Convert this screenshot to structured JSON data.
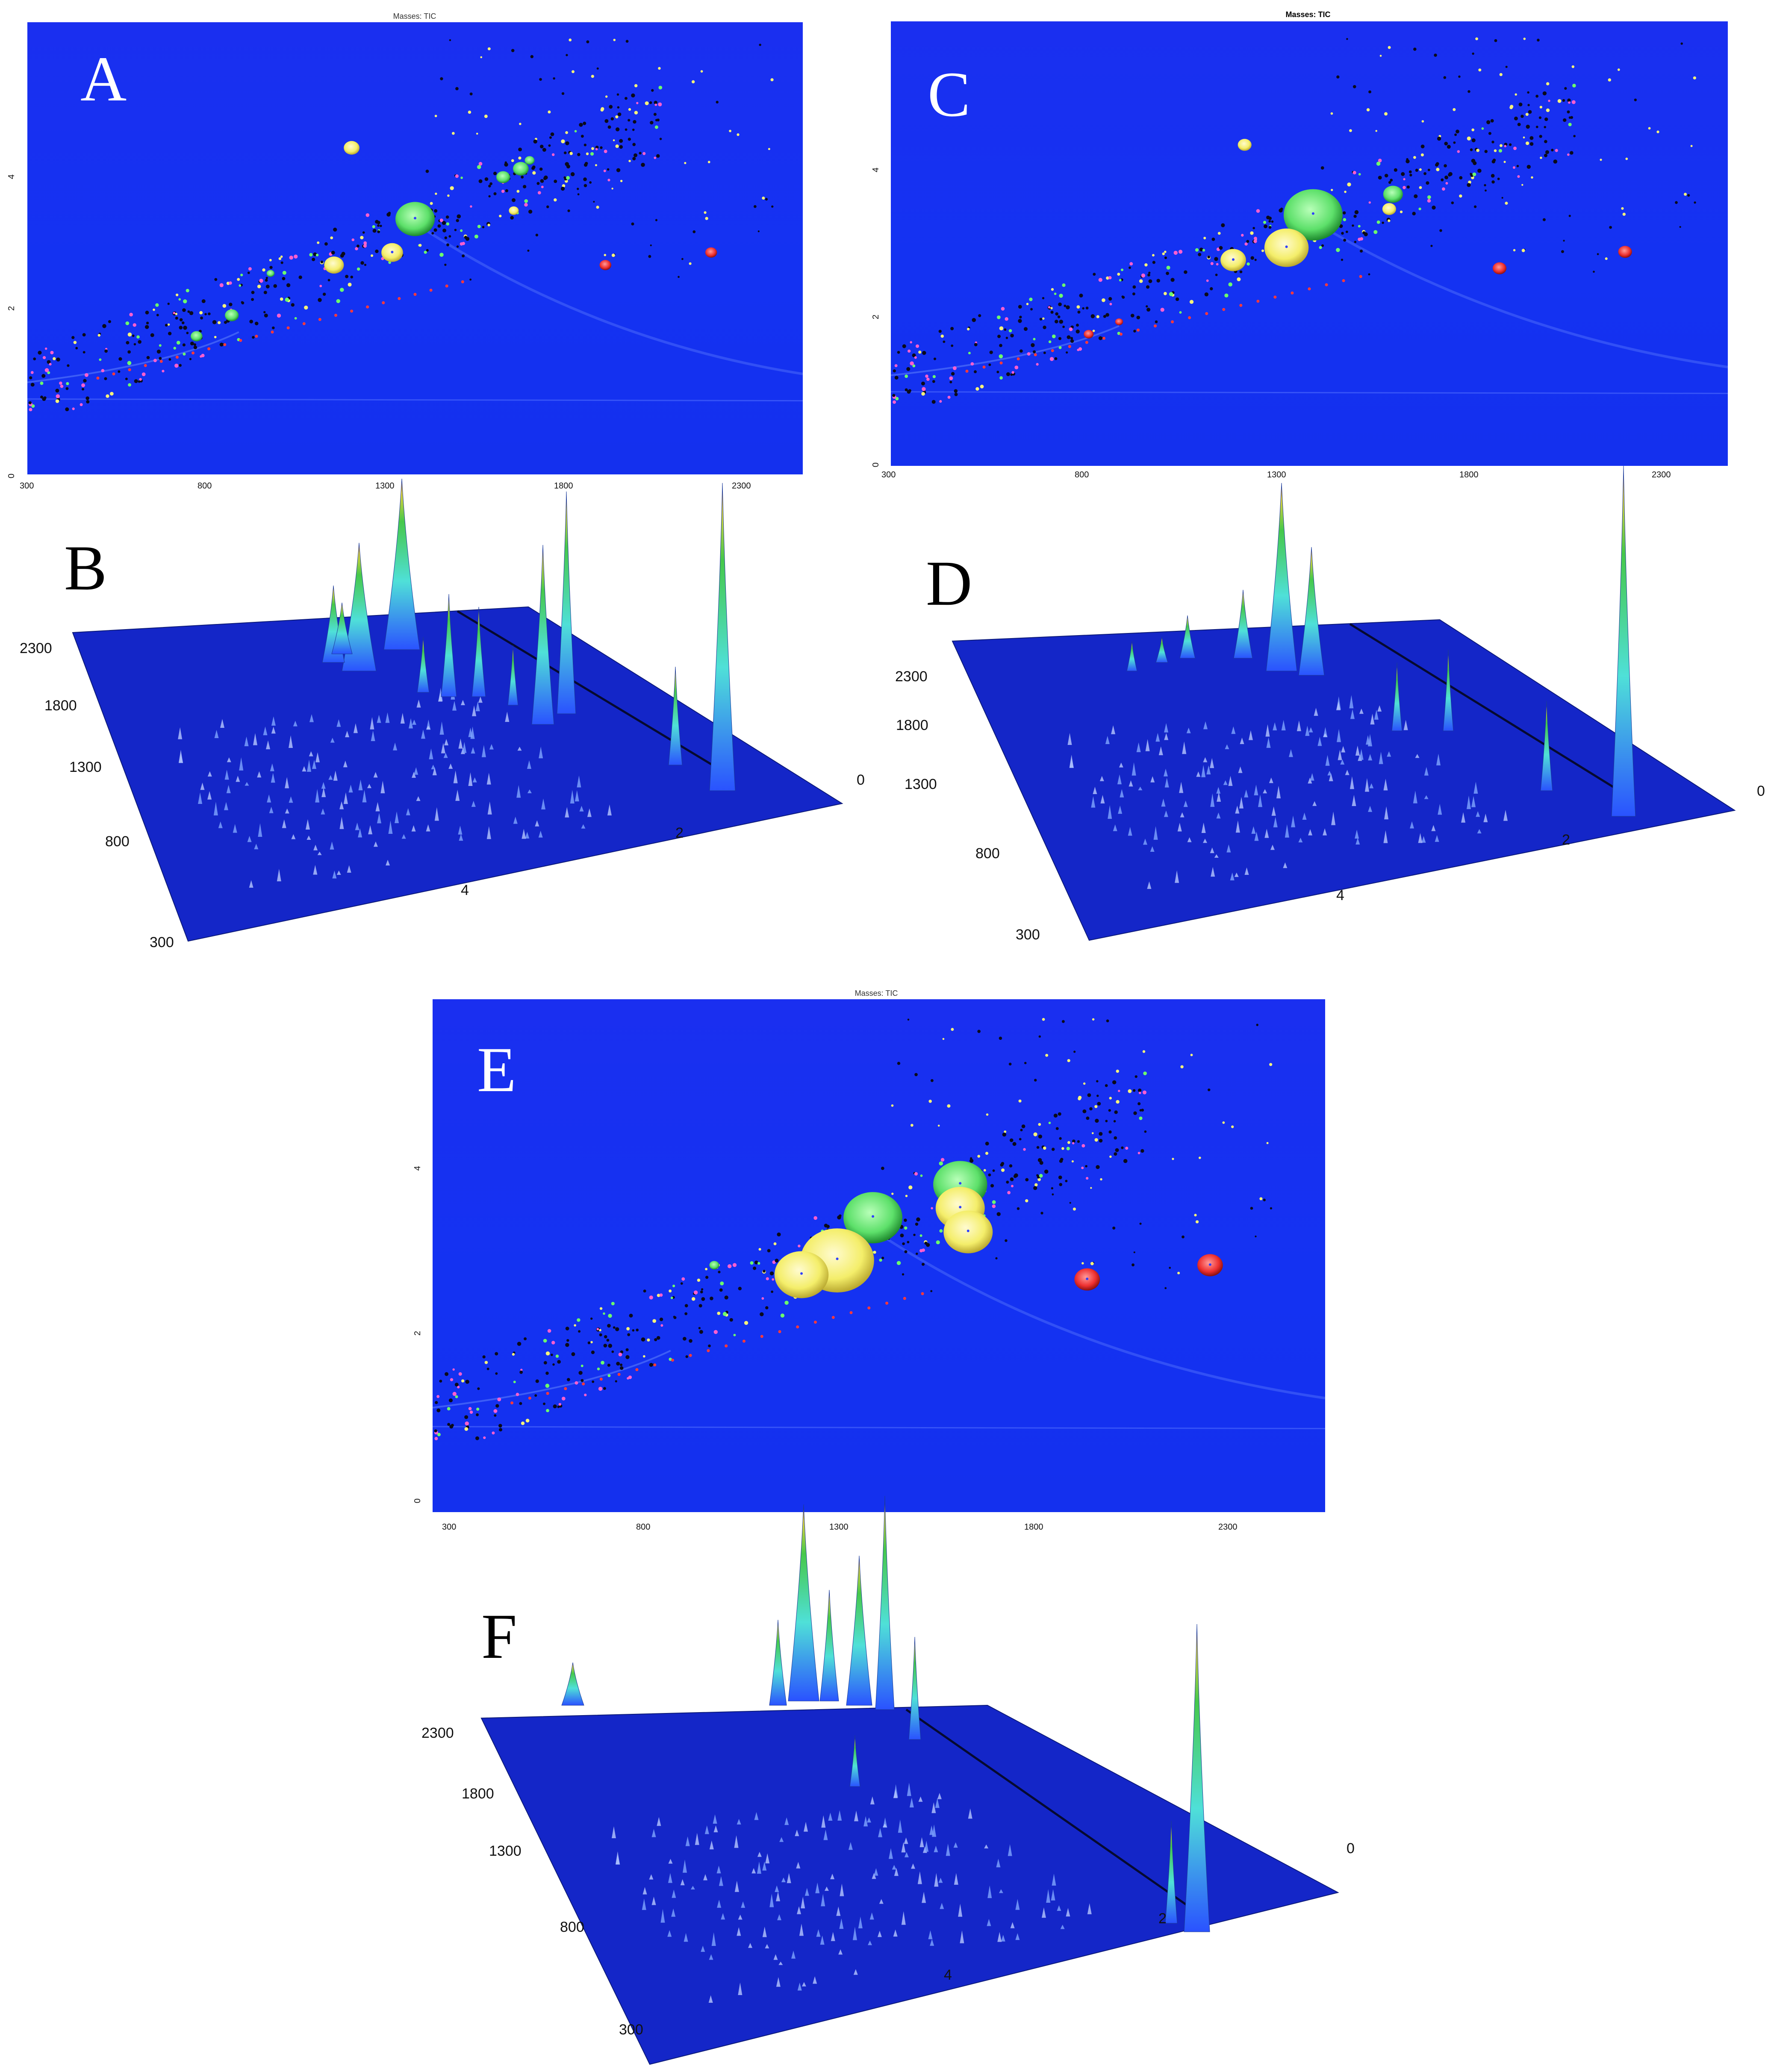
{
  "chart_data": [
    {
      "panel": "A",
      "type": "scatter",
      "title": "Masses: TIC",
      "xticks": [
        "300",
        "800",
        "1300",
        "1800",
        "2300"
      ],
      "yticks": [
        "0",
        "2",
        "4"
      ],
      "xlim": [
        300,
        2500
      ],
      "ylim": [
        0,
        5.4
      ],
      "spots": [
        {
          "x": 1400,
          "y": 3.05,
          "r": 40,
          "color": "green"
        },
        {
          "x": 1220,
          "y": 3.9,
          "r": 16,
          "color": "yellow"
        },
        {
          "x": 1170,
          "y": 2.5,
          "r": 20,
          "color": "yellow"
        },
        {
          "x": 1335,
          "y": 2.65,
          "r": 22,
          "color": "yellow"
        },
        {
          "x": 1680,
          "y": 3.15,
          "r": 10,
          "color": "yellow"
        },
        {
          "x": 1650,
          "y": 3.55,
          "r": 14,
          "color": "green"
        },
        {
          "x": 1700,
          "y": 3.65,
          "r": 16,
          "color": "green"
        },
        {
          "x": 1725,
          "y": 3.75,
          "r": 10,
          "color": "green"
        },
        {
          "x": 780,
          "y": 1.65,
          "r": 12,
          "color": "green"
        },
        {
          "x": 880,
          "y": 1.9,
          "r": 14,
          "color": "green"
        },
        {
          "x": 990,
          "y": 2.4,
          "r": 8,
          "color": "green"
        },
        {
          "x": 1940,
          "y": 2.5,
          "r": 12,
          "color": "red"
        },
        {
          "x": 2240,
          "y": 2.65,
          "r": 12,
          "color": "red"
        }
      ]
    },
    {
      "panel": "B",
      "type": "surface3d",
      "x_ticks": [
        "300",
        "800",
        "1300",
        "1800",
        "2300"
      ],
      "y_ticks": [
        "4",
        "2",
        "0"
      ]
    },
    {
      "panel": "C",
      "type": "scatter",
      "title": "Masses:  TIC",
      "xticks": [
        "300",
        "800",
        "1300",
        "1800",
        "2300"
      ],
      "yticks": [
        "0",
        "2",
        "4"
      ],
      "xlim": [
        300,
        2500
      ],
      "ylim": [
        0,
        5.4
      ],
      "spots": [
        {
          "x": 1410,
          "y": 3.05,
          "r": 60,
          "color": "green"
        },
        {
          "x": 1340,
          "y": 2.65,
          "r": 45,
          "color": "yellow"
        },
        {
          "x": 1200,
          "y": 2.5,
          "r": 26,
          "color": "yellow"
        },
        {
          "x": 1230,
          "y": 3.9,
          "r": 14,
          "color": "yellow"
        },
        {
          "x": 1620,
          "y": 3.3,
          "r": 20,
          "color": "green"
        },
        {
          "x": 1610,
          "y": 3.12,
          "r": 14,
          "color": "yellow"
        },
        {
          "x": 820,
          "y": 1.6,
          "r": 10,
          "color": "red"
        },
        {
          "x": 900,
          "y": 1.75,
          "r": 8,
          "color": "red"
        },
        {
          "x": 1900,
          "y": 2.4,
          "r": 14,
          "color": "red"
        },
        {
          "x": 2230,
          "y": 2.6,
          "r": 14,
          "color": "red"
        }
      ]
    },
    {
      "panel": "D",
      "type": "surface3d",
      "x_ticks": [
        "300",
        "800",
        "1300",
        "1800",
        "2300"
      ],
      "y_ticks": [
        "4",
        "2",
        "0"
      ]
    },
    {
      "panel": "E",
      "type": "scatter",
      "title": "Masses: TIC",
      "xticks": [
        "300",
        "800",
        "1300",
        "1800",
        "2300"
      ],
      "yticks": [
        "0",
        "2",
        "4"
      ],
      "xlim": [
        300,
        2550
      ],
      "ylim": [
        0,
        5.4
      ],
      "spots": [
        {
          "x": 1410,
          "y": 3.1,
          "r": 60,
          "color": "green"
        },
        {
          "x": 1320,
          "y": 2.65,
          "r": 75,
          "color": "yellow"
        },
        {
          "x": 1230,
          "y": 2.5,
          "r": 55,
          "color": "yellow"
        },
        {
          "x": 1630,
          "y": 3.45,
          "r": 55,
          "color": "green"
        },
        {
          "x": 1630,
          "y": 3.2,
          "r": 50,
          "color": "yellow"
        },
        {
          "x": 1650,
          "y": 2.95,
          "r": 50,
          "color": "yellow"
        },
        {
          "x": 1950,
          "y": 2.45,
          "r": 26,
          "color": "red"
        },
        {
          "x": 2260,
          "y": 2.6,
          "r": 26,
          "color": "red"
        },
        {
          "x": 1010,
          "y": 2.6,
          "r": 10,
          "color": "green"
        }
      ]
    },
    {
      "panel": "F",
      "type": "surface3d",
      "x_ticks": [
        "300",
        "800",
        "1300",
        "1800",
        "2300"
      ],
      "y_ticks": [
        "4",
        "2",
        "0"
      ]
    }
  ],
  "colors": {
    "plot_blue": "#1432f0",
    "surface_blue": "#1426c8",
    "green": "#5de06a",
    "yellow": "#f4ee6a",
    "red": "#ee3030"
  }
}
